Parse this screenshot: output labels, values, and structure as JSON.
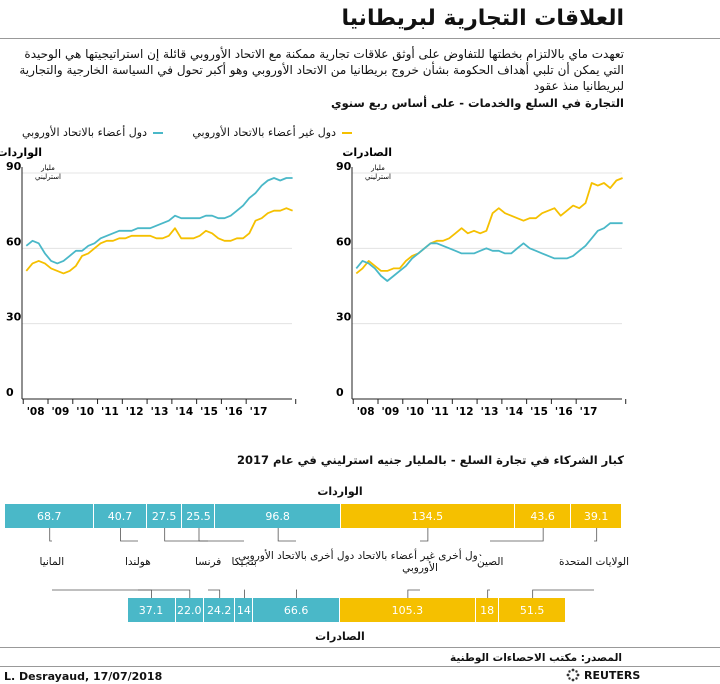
{
  "header": {
    "title": "العلاقات التجارية لبريطانيا",
    "description": "تعهدت ماي بالالتزام بخطتها للتفاوض على أوثق علاقات تجارية ممكنة مع الاتحاد الأوروبي قائلة إن استراتيجيتها هي الوحيدة التي يمكن أن تلبي أهداف الحكومة بشأن خروج بريطانيا من الاتحاد الأوروبي وهو أكبر تحول في السياسة الخارجية والتجارية لبريطانيا منذ عقود",
    "subhead": "التجارة في السلع والخدمات - على أساس ربع سنوي"
  },
  "legend": {
    "non_eu": "دول غير أعضاء بالاتحاد الأوروبي",
    "eu": "دول أعضاء بالاتحاد الأوروبي"
  },
  "colors": {
    "yellow": "#f5c000",
    "teal": "#4ab8c8",
    "axis": "#222222",
    "grid": "#dddddd"
  },
  "chart_data": [
    {
      "type": "line",
      "title": "الواردات",
      "unit": "مليار استرليني",
      "ylim": [
        0,
        90
      ],
      "yticks": [
        0,
        30,
        60,
        90
      ],
      "xticks": [
        "'08",
        "'09",
        "'10",
        "'11",
        "'12",
        "'13",
        "'14",
        "'15",
        "'16",
        "'17"
      ],
      "x_start": 2008.0,
      "x_step": 0.25,
      "series": [
        {
          "name": "دول غير أعضاء بالاتحاد الأوروبي",
          "color": "#f5c000",
          "values": [
            51,
            54,
            55,
            54,
            52,
            51,
            50,
            51,
            53,
            57,
            58,
            60,
            62,
            63,
            63,
            64,
            64,
            65,
            65,
            65,
            65,
            64,
            64,
            65,
            68,
            64,
            64,
            64,
            65,
            67,
            66,
            64,
            63,
            63,
            64,
            64,
            66,
            71,
            72,
            74,
            75,
            75,
            76,
            75
          ]
        },
        {
          "name": "دول أعضاء بالاتحاد الأوروبي",
          "color": "#4ab8c8",
          "values": [
            61,
            63,
            62,
            58,
            55,
            54,
            55,
            57,
            59,
            59,
            61,
            62,
            64,
            65,
            66,
            67,
            67,
            67,
            68,
            68,
            68,
            69,
            70,
            71,
            73,
            72,
            72,
            72,
            72,
            73,
            73,
            72,
            72,
            73,
            75,
            77,
            80,
            82,
            85,
            87,
            88,
            87,
            88,
            88
          ]
        }
      ]
    },
    {
      "type": "line",
      "title": "الصادرات",
      "unit": "مليار استرليني",
      "ylim": [
        0,
        90
      ],
      "yticks": [
        0,
        30,
        60,
        90
      ],
      "xticks": [
        "'08",
        "'09",
        "'10",
        "'11",
        "'12",
        "'13",
        "'14",
        "'15",
        "'16",
        "'17"
      ],
      "x_start": 2008.0,
      "x_step": 0.25,
      "series": [
        {
          "name": "دول غير أعضاء بالاتحاد الأوروبي",
          "color": "#f5c000",
          "values": [
            50,
            52,
            55,
            53,
            51,
            51,
            52,
            52,
            55,
            57,
            58,
            60,
            62,
            63,
            63,
            64,
            66,
            68,
            66,
            67,
            66,
            67,
            74,
            76,
            74,
            73,
            72,
            71,
            72,
            72,
            74,
            75,
            76,
            73,
            75,
            77,
            76,
            78,
            86,
            85,
            86,
            84,
            87,
            88
          ]
        },
        {
          "name": "دول أعضاء بالاتحاد الأوروبي",
          "color": "#4ab8c8",
          "values": [
            52,
            55,
            54,
            52,
            49,
            47,
            49,
            51,
            53,
            56,
            58,
            60,
            62,
            62,
            61,
            60,
            59,
            58,
            58,
            58,
            59,
            60,
            59,
            59,
            58,
            58,
            60,
            62,
            60,
            59,
            58,
            57,
            56,
            56,
            56,
            57,
            59,
            61,
            64,
            67,
            68,
            70,
            70,
            70
          ]
        }
      ]
    },
    {
      "type": "bar",
      "title": "كبار الشركاء في تجارة السلع - بالمليار جنيه استرليني في عام 2017",
      "imports_label": "الواردات",
      "exports_label": "الصادرات",
      "partners": [
        {
          "name": "المانيا",
          "imports": 68.7,
          "exports": 37.1,
          "color": "#4ab8c8",
          "imports_label": "68.7",
          "exports_label": "37.1"
        },
        {
          "name": "هولندا",
          "imports": 40.7,
          "exports": 22.0,
          "color": "#4ab8c8",
          "imports_label": "40.7",
          "exports_label": "22.0"
        },
        {
          "name": "فرنسا",
          "imports": 27.5,
          "exports": 24.2,
          "color": "#4ab8c8",
          "imports_label": "27.5",
          "exports_label": "24.2"
        },
        {
          "name": "بلجيكا",
          "imports": 25.5,
          "exports": 14,
          "color": "#4ab8c8",
          "imports_label": "25.5",
          "exports_label": "14"
        },
        {
          "name": "دول أخرى بالاتحاد الأوروبي",
          "imports": 96.8,
          "exports": 66.6,
          "color": "#4ab8c8",
          "imports_label": "96.8",
          "exports_label": "66.6"
        },
        {
          "name": "دول أخرى غير أعضاء بالاتحاد الأوروبي",
          "imports": 134.5,
          "exports": 105.3,
          "color": "#f5c000",
          "imports_label": "134.5",
          "exports_label": "105.3"
        },
        {
          "name": "الصين",
          "imports": 43.6,
          "exports": 18,
          "color": "#f5c000",
          "imports_label": "43.6",
          "exports_label": "18"
        },
        {
          "name": "الولايات المتحدة",
          "imports": 39.1,
          "exports": 51.5,
          "color": "#f5c000",
          "imports_label": "39.1",
          "exports_label": "51.5"
        }
      ]
    }
  ],
  "footer": {
    "source": "المصدر: مكتب الاحصاءات الوطنية",
    "byline": "L. Desrayaud,  17/07/2018",
    "brand": "REUTERS"
  }
}
